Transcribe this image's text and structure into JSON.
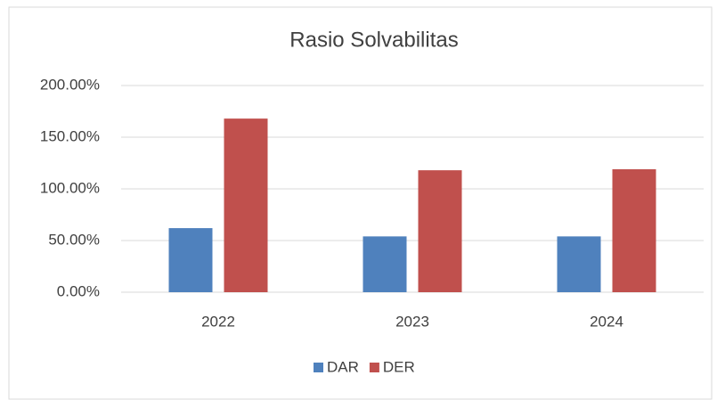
{
  "chart_data": {
    "type": "bar",
    "title": "Rasio Solvabilitas",
    "categories": [
      "2022",
      "2023",
      "2024"
    ],
    "series": [
      {
        "name": "DAR",
        "color": "#4f81bd",
        "values": [
          62,
          54,
          54
        ]
      },
      {
        "name": "DER",
        "color": "#c0504d",
        "values": [
          168,
          118,
          119
        ]
      }
    ],
    "ylim": [
      0,
      200
    ],
    "yticks": [
      {
        "value": 0,
        "label": "0.00%"
      },
      {
        "value": 50,
        "label": "50.00%"
      },
      {
        "value": 100,
        "label": "100.00%"
      },
      {
        "value": 150,
        "label": "150.00%"
      },
      {
        "value": 200,
        "label": "200.00%"
      }
    ],
    "grid": true,
    "legend": "bottom"
  }
}
